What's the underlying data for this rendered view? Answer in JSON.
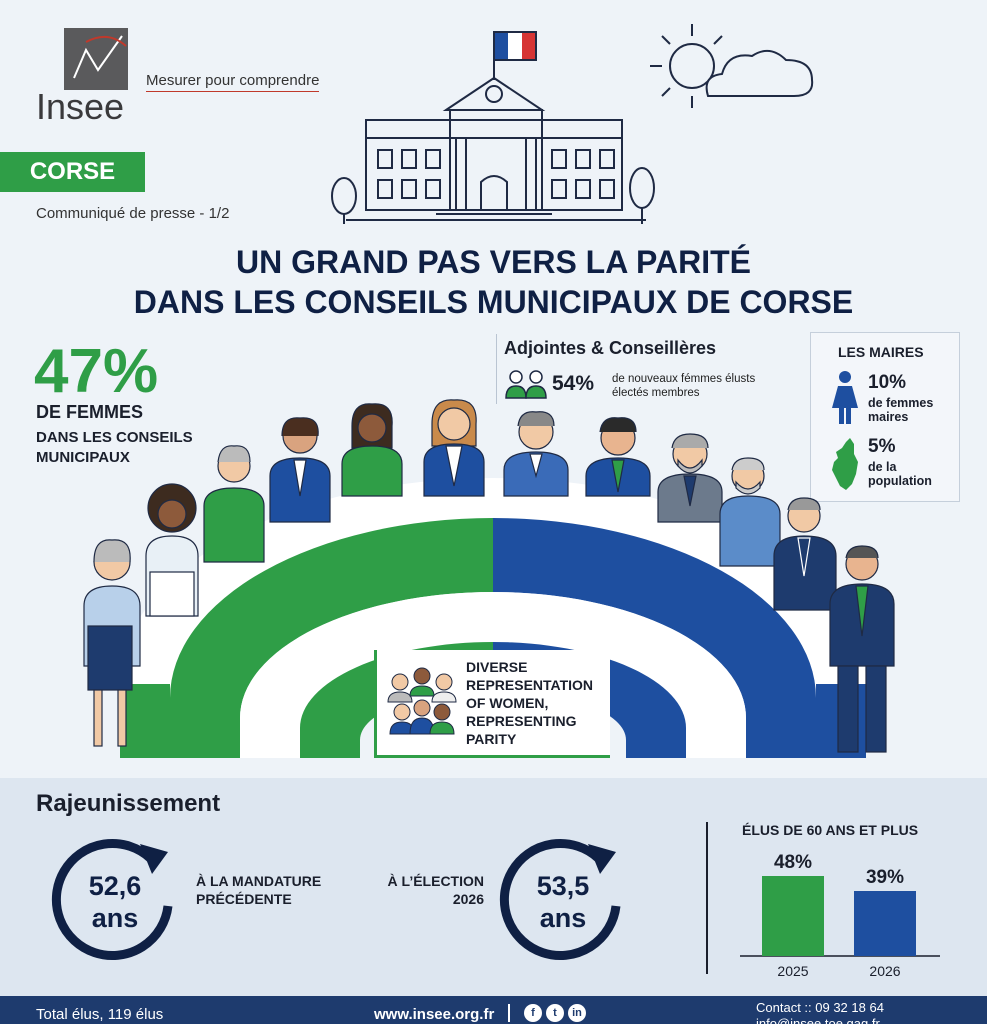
{
  "header": {
    "brand": "Insee",
    "tagline": "Mesurer pour comprendre",
    "region": "CORSE",
    "press": "Communiqué de presse - 1/2"
  },
  "title": {
    "line1": "UN GRAND PAS VERS LA PARITÉ",
    "line2": "DANS LES CONSEILS MUNICIPAUX DE CORSE"
  },
  "women_share": {
    "value": "47%",
    "line1": "DE FEMMES",
    "line2": "DANS LES CONSEILS MUNICIPAUX"
  },
  "adjointes": {
    "title": "Adjointes & Conseillères",
    "value": "54%",
    "desc": "de nouveaux fémmes élusts électés membres"
  },
  "maires": {
    "title": "LES MAIRES",
    "stat1": {
      "value": "10%",
      "label": "de femmes maires"
    },
    "stat2": {
      "value": "5%",
      "label": "de la population"
    }
  },
  "diverse": {
    "text": "DIVERSE REPRESENTATION OF WOMEN, REPRESENTING PARITY"
  },
  "rajeunissement": {
    "title": "Rajeunissement",
    "prev": {
      "num": "52,6",
      "unit": "ans",
      "label": "À LA MANDATURE PRÉCÉDENTE"
    },
    "next": {
      "num": "53,5",
      "unit": "ans",
      "label1": "À L’ÉLECTION",
      "label2": "2026"
    }
  },
  "chart_data": {
    "type": "bar",
    "title": "ÉLUS DE 60 ANS ET PLUS",
    "categories": [
      "2025",
      "2026"
    ],
    "values": [
      48,
      39
    ],
    "value_labels": [
      "48%",
      "39%"
    ],
    "colors": [
      "#2f9e47",
      "#1e4fa0"
    ],
    "ylim": [
      0,
      60
    ]
  },
  "footer": {
    "total": "Total élus, 119 élus",
    "site": "www.insee.org.fr",
    "contact": "Contact :: 09 32 18 64",
    "email": "info@insee.toe.gag.fr"
  },
  "colors": {
    "green": "#2f9e47",
    "blue": "#1e4fa0",
    "navy": "#0f2044",
    "footer": "#1e3b6e"
  }
}
